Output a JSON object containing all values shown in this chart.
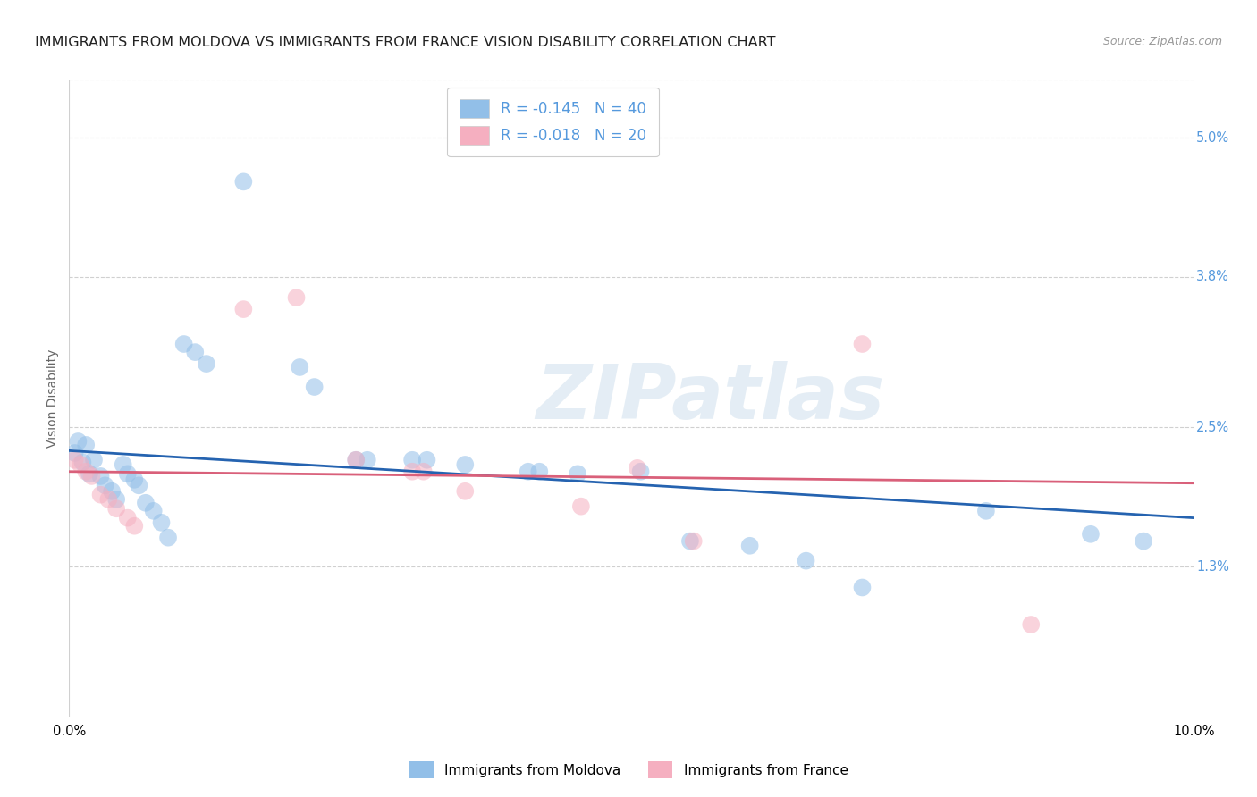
{
  "title": "IMMIGRANTS FROM MOLDOVA VS IMMIGRANTS FROM FRANCE VISION DISABILITY CORRELATION CHART",
  "source": "Source: ZipAtlas.com",
  "ylabel": "Vision Disability",
  "ytick_values": [
    1.3,
    2.5,
    3.8,
    5.0
  ],
  "xmin": 0.0,
  "xmax": 10.0,
  "ymin": 0.0,
  "ymax": 5.5,
  "blue_scatter_x": [
    0.05,
    0.08,
    0.12,
    0.15,
    0.18,
    0.22,
    0.28,
    0.32,
    0.38,
    0.42,
    0.48,
    0.52,
    0.58,
    0.62,
    0.68,
    0.75,
    0.82,
    0.88,
    1.02,
    1.12,
    1.22,
    1.55,
    2.05,
    2.18,
    2.55,
    2.65,
    3.05,
    3.18,
    3.52,
    4.08,
    4.18,
    4.52,
    5.08,
    5.52,
    6.05,
    6.55,
    7.05,
    8.15,
    9.08,
    9.55
  ],
  "blue_scatter_y": [
    2.28,
    2.38,
    2.2,
    2.35,
    2.1,
    2.22,
    2.08,
    2.0,
    1.95,
    1.88,
    2.18,
    2.1,
    2.05,
    2.0,
    1.85,
    1.78,
    1.68,
    1.55,
    3.22,
    3.15,
    3.05,
    4.62,
    3.02,
    2.85,
    2.22,
    2.22,
    2.22,
    2.22,
    2.18,
    2.12,
    2.12,
    2.1,
    2.12,
    1.52,
    1.48,
    1.35,
    1.12,
    1.78,
    1.58,
    1.52
  ],
  "pink_scatter_x": [
    0.05,
    0.1,
    0.15,
    0.2,
    0.28,
    0.35,
    0.42,
    0.52,
    0.58,
    1.55,
    2.02,
    2.55,
    3.05,
    3.15,
    3.52,
    4.55,
    5.05,
    5.55,
    7.05,
    8.55
  ],
  "pink_scatter_y": [
    2.22,
    2.18,
    2.12,
    2.08,
    1.92,
    1.88,
    1.8,
    1.72,
    1.65,
    3.52,
    3.62,
    2.22,
    2.12,
    2.12,
    1.95,
    1.82,
    2.15,
    1.52,
    3.22,
    0.8
  ],
  "blue_line_y_start": 2.3,
  "blue_line_y_end": 1.72,
  "pink_line_y_start": 2.12,
  "pink_line_y_end": 2.02,
  "scatter_size": 200,
  "scatter_alpha": 0.55,
  "blue_color": "#92bfe8",
  "pink_color": "#f5afc0",
  "blue_line_color": "#2563b0",
  "pink_line_color": "#d9607a",
  "grid_color": "#d0d0d0",
  "ytick_color": "#5599dd",
  "background_color": "#ffffff",
  "watermark_text": "ZIPatlas",
  "title_fontsize": 11.5,
  "label_fontsize": 10,
  "tick_fontsize": 10.5
}
